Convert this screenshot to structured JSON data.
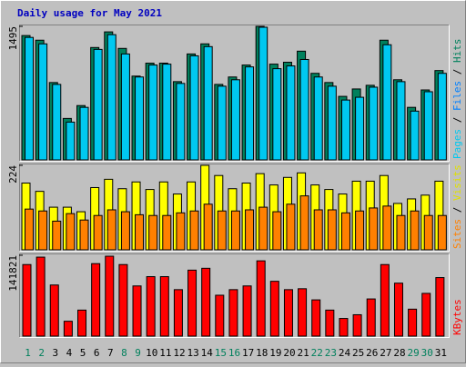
{
  "chart_data": {
    "type": "bar",
    "title": "Daily usage for May 2021",
    "title_color": "#0000c0",
    "categories": [
      "1",
      "2",
      "3",
      "4",
      "5",
      "6",
      "7",
      "8",
      "9",
      "10",
      "11",
      "12",
      "13",
      "14",
      "15",
      "16",
      "17",
      "18",
      "19",
      "20",
      "21",
      "22",
      "23",
      "24",
      "25",
      "26",
      "27",
      "28",
      "29",
      "30",
      "31"
    ],
    "category_color": "#000000",
    "weekend_indices": [
      0,
      1,
      7,
      8,
      14,
      15,
      21,
      22,
      28,
      29
    ],
    "weekend_color": "#00805c",
    "legend_separator": " / ",
    "panels": [
      {
        "ylim": [
          0,
          1495
        ],
        "yticks": [
          1495
        ],
        "legend": [
          {
            "name": "Pages",
            "color": "#00c8f0"
          },
          {
            "name": "Files",
            "color": "#0080ff"
          },
          {
            "name": "Hits",
            "color": "#00805c"
          }
        ],
        "series": [
          {
            "color": "#00805c",
            "values": [
              1392,
              1340,
              866,
              464,
              608,
              1258,
              1433,
              1248,
              938,
              1083,
              1083,
              876,
              1186,
              1299,
              845,
              928,
              1062,
              1495,
              1072,
              1093,
              1217,
              969,
              866,
              711,
              794,
              835,
              1340,
              897,
              588,
              783,
              1000
            ]
          },
          {
            "color": "#00c8f0",
            "values": [
              1371,
              1299,
              845,
              423,
              588,
              1237,
              1402,
              1186,
              928,
              1062,
              1072,
              856,
              1165,
              1268,
              825,
              897,
              1041,
              1485,
              1021,
              1052,
              1124,
              928,
              825,
              670,
              701,
              814,
              1289,
              876,
              546,
              763,
              969
            ]
          }
        ]
      },
      {
        "ylim": [
          0,
          224
        ],
        "yticks": [
          224
        ],
        "legend": [
          {
            "name": "Sites",
            "color": "#ff8000"
          },
          {
            "name": "Visits",
            "color": "#e0e000"
          }
        ],
        "series": [
          {
            "color": "#ffff00",
            "values": [
              177,
              155,
              113,
              113,
              101,
              165,
              187,
              162,
              180,
              160,
              180,
              148,
              180,
              224,
              197,
              162,
              177,
              202,
              172,
              192,
              204,
              172,
              160,
              148,
              182,
              182,
              197,
              123,
              135,
              145,
              182
            ]
          },
          {
            "color": "#ff8000",
            "values": [
              108,
              103,
              76,
              96,
              79,
              91,
              106,
              101,
              93,
              91,
              91,
              98,
              103,
              121,
              103,
              103,
              106,
              113,
              101,
              121,
              143,
              106,
              106,
              98,
              103,
              111,
              116,
              91,
              103,
              91,
              91
            ]
          }
        ]
      },
      {
        "ylim": [
          0,
          141821
        ],
        "yticks": [
          141821
        ],
        "legend": [
          {
            "name": "KBytes",
            "color": "#ff0000"
          }
        ],
        "series": [
          {
            "color": "#ff0000",
            "values": [
              125510,
              138550,
              89650,
              26080,
              45640,
              127140,
              140190,
              125510,
              88020,
              104320,
              104320,
              81500,
              115730,
              118990,
              71720,
              81500,
              88020,
              132030,
              96170,
              81500,
              83130,
              63570,
              45640,
              30970,
              37490,
              65200,
              125510,
              92910,
              47270,
              74980,
              102690
            ]
          }
        ]
      }
    ]
  }
}
